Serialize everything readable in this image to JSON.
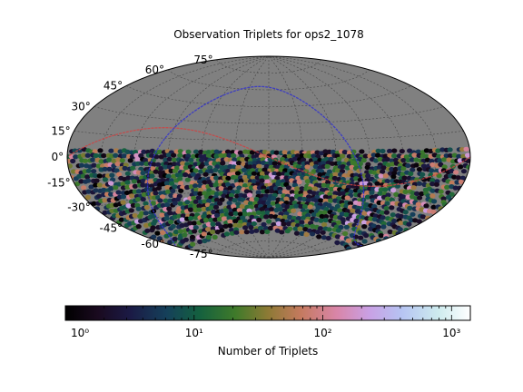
{
  "chart_data": {
    "type": "heatmap",
    "title": "Observation Triplets for ops2_1078",
    "projection": "aitoff",
    "map_background_color": "#808080",
    "grid": true,
    "lat_tick_labels": [
      "75°",
      "60°",
      "45°",
      "30°",
      "15°",
      "0°",
      "-15°",
      "-30°",
      "-45°",
      "-60°",
      "-75°"
    ],
    "lat_tick_values": [
      75,
      60,
      45,
      30,
      15,
      0,
      -15,
      -30,
      -45,
      -60,
      -75
    ],
    "colorbar": {
      "label": "Number of Triplets",
      "scale": "log",
      "colormap": "cubehelix",
      "range": [
        1,
        1400
      ],
      "ticks": [
        {
          "value": 1,
          "label": "10⁰"
        },
        {
          "value": 10,
          "label": "10¹"
        },
        {
          "value": 100,
          "label": "10²"
        },
        {
          "value": 1000,
          "label": "10³"
        }
      ]
    },
    "data_region": {
      "dec_min": -68,
      "dec_max": 4
    },
    "overlays": [
      {
        "kind": "ecliptic",
        "color": "#cc4444"
      },
      {
        "kind": "galactic-plane",
        "color": "#3333cc"
      }
    ]
  }
}
